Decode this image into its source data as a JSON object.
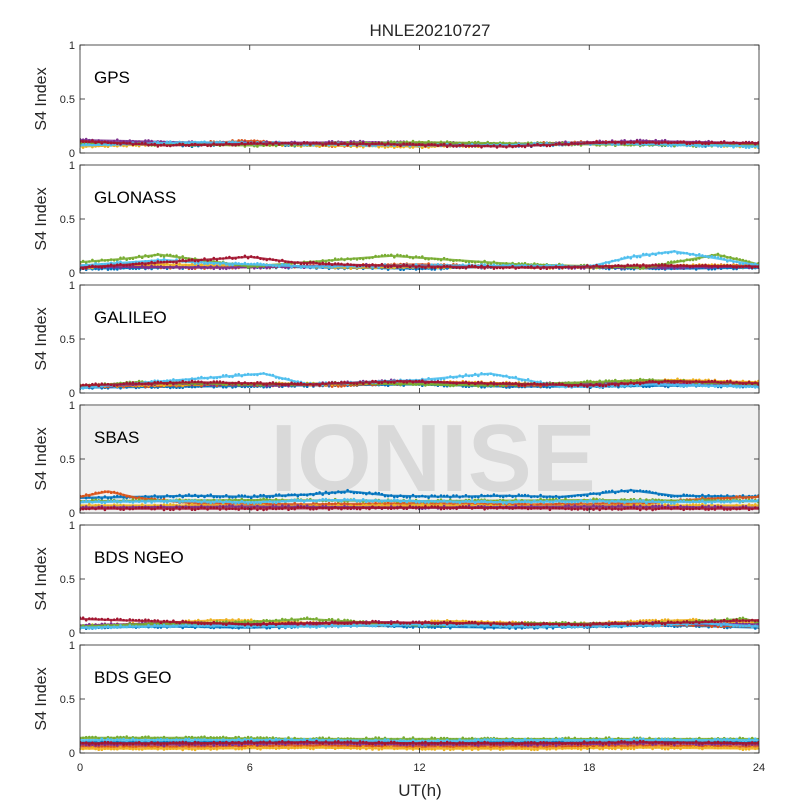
{
  "figure": {
    "title": "HNLE20210727",
    "watermark": "IONISE",
    "watermark_panel": 3
  },
  "chart_data": {
    "type": "scatter",
    "xlabel": "UT(h)",
    "ylabel": "S4 Index",
    "xlim": [
      0,
      24
    ],
    "ylim": [
      0,
      1
    ],
    "x_ticks": [
      0,
      6,
      12,
      18,
      24
    ],
    "y_ticks": [
      0,
      0.5,
      1
    ],
    "x_tick_labels": [
      "0",
      "6",
      "12",
      "18",
      "24"
    ],
    "y_tick_labels": [
      "0",
      "0.5",
      "1"
    ],
    "grid": false,
    "colors": [
      "#0072BD",
      "#D95319",
      "#EDB120",
      "#7E2F8E",
      "#77AC30",
      "#4DBEEE",
      "#A2142F"
    ],
    "panels": [
      {
        "label": "GPS",
        "series": [
          {
            "x": [
              0,
              2,
              4,
              6,
              8,
              10,
              12,
              14,
              16,
              18,
              20,
              22,
              24
            ],
            "y": [
              0.08,
              0.1,
              0.07,
              0.09,
              0.07,
              0.08,
              0.06,
              0.08,
              0.07,
              0.09,
              0.08,
              0.07,
              0.08
            ]
          },
          {
            "x": [
              0,
              3,
              6,
              9,
              12,
              15,
              18,
              21,
              24
            ],
            "y": [
              0.1,
              0.08,
              0.11,
              0.07,
              0.09,
              0.08,
              0.1,
              0.09,
              0.07
            ]
          },
          {
            "x": [
              0,
              4,
              8,
              12,
              16,
              20,
              24
            ],
            "y": [
              0.06,
              0.09,
              0.07,
              0.06,
              0.08,
              0.1,
              0.06
            ]
          },
          {
            "x": [
              0,
              5,
              10,
              15,
              20,
              24
            ],
            "y": [
              0.12,
              0.09,
              0.1,
              0.08,
              0.11,
              0.09
            ]
          },
          {
            "x": [
              0,
              6,
              12,
              18,
              24
            ],
            "y": [
              0.09,
              0.07,
              0.1,
              0.08,
              0.07
            ]
          },
          {
            "x": [
              0,
              4,
              9,
              14,
              19,
              24
            ],
            "y": [
              0.07,
              0.1,
              0.08,
              0.07,
              0.09,
              0.06
            ]
          },
          {
            "x": [
              0,
              3,
              7,
              11,
              15,
              19,
              24
            ],
            "y": [
              0.11,
              0.07,
              0.09,
              0.08,
              0.06,
              0.1,
              0.09
            ]
          }
        ]
      },
      {
        "label": "GLONASS",
        "series": [
          {
            "x": [
              0,
              3,
              6,
              9,
              12,
              15,
              18,
              21,
              24
            ],
            "y": [
              0.04,
              0.05,
              0.06,
              0.05,
              0.04,
              0.06,
              0.05,
              0.04,
              0.05
            ]
          },
          {
            "x": [
              0,
              4,
              8,
              12,
              16,
              20,
              24
            ],
            "y": [
              0.07,
              0.05,
              0.06,
              0.08,
              0.05,
              0.06,
              0.07
            ]
          },
          {
            "x": [
              0,
              2,
              6,
              10,
              14,
              18,
              22,
              24
            ],
            "y": [
              0.05,
              0.08,
              0.07,
              0.05,
              0.06,
              0.05,
              0.07,
              0.06
            ]
          },
          {
            "x": [
              0,
              5,
              10,
              15,
              20,
              24
            ],
            "y": [
              0.06,
              0.05,
              0.07,
              0.06,
              0.05,
              0.06
            ]
          },
          {
            "x": [
              0,
              1.5,
              2.8,
              6,
              11,
              15.5,
              20,
              22.5,
              24
            ],
            "y": [
              0.1,
              0.13,
              0.17,
              0.06,
              0.16,
              0.08,
              0.05,
              0.17,
              0.08
            ]
          },
          {
            "x": [
              0,
              3,
              4,
              8,
              13,
              18,
              19.5,
              21,
              24
            ],
            "y": [
              0.07,
              0.12,
              0.1,
              0.06,
              0.07,
              0.06,
              0.15,
              0.2,
              0.07
            ]
          },
          {
            "x": [
              0,
              6,
              7.5,
              9,
              12,
              16,
              20,
              24
            ],
            "y": [
              0.05,
              0.15,
              0.1,
              0.08,
              0.06,
              0.05,
              0.07,
              0.06
            ]
          }
        ]
      },
      {
        "label": "GALILEO",
        "series": [
          {
            "x": [
              0,
              4,
              8,
              12,
              15,
              18,
              22,
              24
            ],
            "y": [
              0.05,
              0.06,
              0.07,
              0.08,
              0.06,
              0.06,
              0.07,
              0.06
            ]
          },
          {
            "x": [
              0,
              3,
              6,
              9,
              12,
              16,
              20,
              24
            ],
            "y": [
              0.06,
              0.07,
              0.08,
              0.07,
              0.1,
              0.07,
              0.11,
              0.08
            ]
          },
          {
            "x": [
              0,
              5,
              10,
              13,
              17,
              21,
              24
            ],
            "y": [
              0.07,
              0.08,
              0.09,
              0.1,
              0.08,
              0.12,
              0.1
            ]
          },
          {
            "x": [
              0,
              3,
              7,
              11,
              15,
              19,
              24
            ],
            "y": [
              0.06,
              0.09,
              0.07,
              0.11,
              0.08,
              0.09,
              0.07
            ]
          },
          {
            "x": [
              0,
              2,
              6,
              10,
              14,
              18,
              20,
              24
            ],
            "y": [
              0.06,
              0.1,
              0.08,
              0.09,
              0.07,
              0.1,
              0.12,
              0.08
            ]
          },
          {
            "x": [
              0,
              6.5,
              8,
              12,
              14.5,
              17,
              20,
              24
            ],
            "y": [
              0.05,
              0.18,
              0.08,
              0.12,
              0.18,
              0.06,
              0.08,
              0.06
            ]
          },
          {
            "x": [
              0,
              4,
              8,
              11.5,
              14,
              18,
              21,
              24
            ],
            "y": [
              0.07,
              0.1,
              0.08,
              0.11,
              0.09,
              0.07,
              0.11,
              0.09
            ]
          }
        ]
      },
      {
        "label": "SBAS",
        "series": [
          {
            "x": [
              0,
              2,
              4,
              6,
              8,
              9.5,
              11,
              13,
              15,
              17,
              19.5,
              21,
              24
            ],
            "y": [
              0.14,
              0.15,
              0.16,
              0.15,
              0.17,
              0.2,
              0.16,
              0.15,
              0.16,
              0.15,
              0.21,
              0.16,
              0.15
            ]
          },
          {
            "x": [
              0,
              1,
              2,
              4,
              8,
              12,
              16,
              20,
              22,
              24
            ],
            "y": [
              0.15,
              0.2,
              0.14,
              0.09,
              0.08,
              0.09,
              0.08,
              0.09,
              0.13,
              0.15
            ]
          },
          {
            "x": [
              0,
              4,
              8,
              12,
              16,
              20,
              24
            ],
            "y": [
              0.07,
              0.07,
              0.06,
              0.07,
              0.06,
              0.07,
              0.07
            ]
          },
          {
            "x": [
              0,
              6,
              12,
              18,
              24
            ],
            "y": [
              0.05,
              0.06,
              0.05,
              0.06,
              0.05
            ]
          },
          {
            "x": [
              0,
              6,
              12,
              18,
              24
            ],
            "y": [
              0.11,
              0.12,
              0.11,
              0.12,
              0.11
            ]
          },
          {
            "x": [
              0,
              3,
              6,
              9,
              12,
              15,
              18,
              21,
              24
            ],
            "y": [
              0.1,
              0.11,
              0.1,
              0.12,
              0.11,
              0.1,
              0.11,
              0.1,
              0.11
            ]
          },
          {
            "x": [
              0,
              6,
              12,
              18,
              24
            ],
            "y": [
              0.04,
              0.04,
              0.05,
              0.04,
              0.04
            ]
          }
        ]
      },
      {
        "label": "BDS NGEO",
        "series": [
          {
            "x": [
              0,
              3,
              6,
              9,
              12,
              15,
              18,
              21,
              24
            ],
            "y": [
              0.05,
              0.06,
              0.05,
              0.07,
              0.06,
              0.05,
              0.06,
              0.07,
              0.05
            ]
          },
          {
            "x": [
              0,
              4,
              8,
              12,
              16,
              20,
              24
            ],
            "y": [
              0.06,
              0.08,
              0.07,
              0.09,
              0.07,
              0.08,
              0.06
            ]
          },
          {
            "x": [
              0,
              5,
              7.5,
              10,
              13,
              17,
              21.5,
              24
            ],
            "y": [
              0.06,
              0.12,
              0.1,
              0.07,
              0.11,
              0.08,
              0.12,
              0.09
            ]
          },
          {
            "x": [
              0,
              3,
              7,
              11,
              15,
              19,
              24
            ],
            "y": [
              0.07,
              0.09,
              0.08,
              0.1,
              0.07,
              0.09,
              0.08
            ]
          },
          {
            "x": [
              0,
              2,
              6,
              8,
              12,
              16,
              20,
              23.5,
              24
            ],
            "y": [
              0.06,
              0.08,
              0.1,
              0.13,
              0.07,
              0.09,
              0.08,
              0.13,
              0.1
            ]
          },
          {
            "x": [
              0,
              4,
              8,
              12,
              16,
              20,
              22,
              24
            ],
            "y": [
              0.05,
              0.07,
              0.06,
              0.08,
              0.06,
              0.07,
              0.09,
              0.06
            ]
          },
          {
            "x": [
              0,
              6,
              10,
              14,
              18,
              22,
              24
            ],
            "y": [
              0.13,
              0.08,
              0.1,
              0.09,
              0.08,
              0.1,
              0.12
            ]
          }
        ]
      },
      {
        "label": "BDS GEO",
        "series": [
          {
            "x": [
              0,
              4,
              8,
              12,
              16,
              20,
              24
            ],
            "y": [
              0.1,
              0.1,
              0.11,
              0.1,
              0.1,
              0.11,
              0.1
            ]
          },
          {
            "x": [
              0,
              4,
              8,
              12,
              16,
              20,
              24
            ],
            "y": [
              0.06,
              0.06,
              0.07,
              0.06,
              0.06,
              0.07,
              0.06
            ]
          },
          {
            "x": [
              0,
              4,
              8,
              12,
              16,
              20,
              24
            ],
            "y": [
              0.04,
              0.04,
              0.05,
              0.04,
              0.04,
              0.05,
              0.04
            ]
          },
          {
            "x": [
              0,
              4,
              8,
              12,
              16,
              20,
              24
            ],
            "y": [
              0.08,
              0.08,
              0.09,
              0.08,
              0.08,
              0.09,
              0.08
            ]
          },
          {
            "x": [
              0,
              4,
              8,
              12,
              16,
              20,
              24
            ],
            "y": [
              0.14,
              0.14,
              0.13,
              0.13,
              0.13,
              0.13,
              0.13
            ]
          },
          {
            "x": [
              0,
              4,
              8,
              12,
              16,
              20,
              24
            ],
            "y": [
              0.12,
              0.12,
              0.12,
              0.11,
              0.12,
              0.12,
              0.12
            ]
          },
          {
            "x": [
              0,
              4,
              8,
              12,
              16,
              20,
              24
            ],
            "y": [
              0.09,
              0.09,
              0.1,
              0.09,
              0.09,
              0.1,
              0.09
            ]
          }
        ]
      }
    ]
  }
}
